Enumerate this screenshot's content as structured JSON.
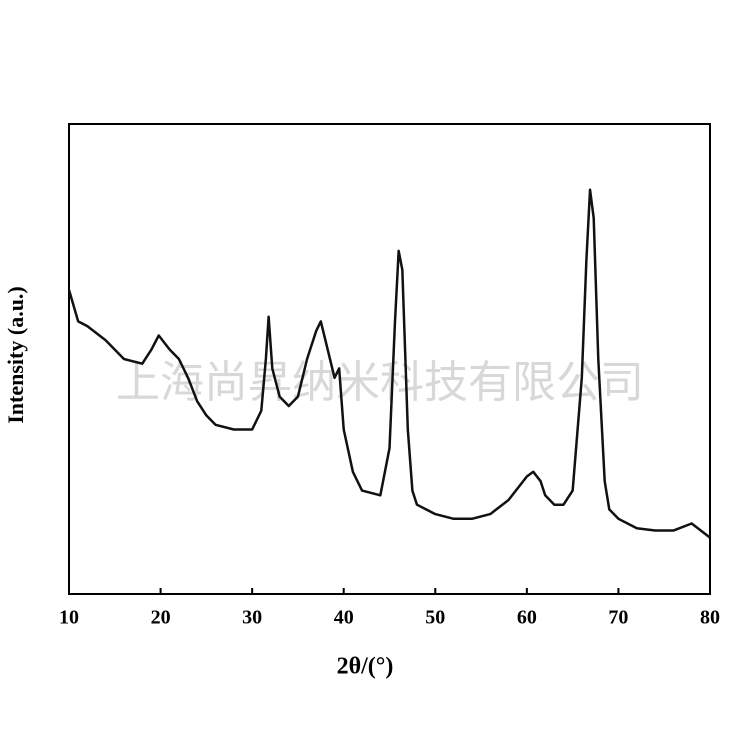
{
  "chart_data": {
    "type": "line",
    "xlabel": "2θ/(°)",
    "ylabel": "Intensity (a.u.)",
    "watermark": "上海尚昇纳米科技有限公司",
    "x": [
      10,
      11,
      12,
      14,
      16,
      18,
      19,
      19.8,
      21,
      22,
      23,
      24,
      25,
      26,
      28,
      30,
      31,
      31.5,
      31.8,
      32.2,
      33,
      34,
      35,
      36,
      37,
      37.5,
      38,
      39,
      39.5,
      40,
      41,
      42,
      43,
      44,
      45,
      45.6,
      46,
      46.4,
      47,
      47.5,
      48,
      50,
      52,
      54,
      56,
      58,
      60,
      60.7,
      61.5,
      62,
      63,
      64,
      65,
      66,
      66.5,
      66.9,
      67.3,
      67.8,
      68.5,
      69,
      70,
      72,
      74,
      76,
      78,
      80
    ],
    "series": [
      {
        "color": "#111111",
        "values": [
          64.7,
          58,
          57,
          54,
          50,
          49,
          52,
          55,
          52,
          50,
          46,
          41,
          38,
          36,
          35,
          35,
          39,
          50,
          59,
          48,
          42,
          40,
          42,
          50,
          56,
          58,
          54,
          46,
          48,
          35,
          26,
          22,
          21.5,
          21,
          31,
          58,
          73,
          69,
          35,
          22,
          19,
          17,
          16,
          16,
          17,
          20,
          25,
          26,
          24,
          21,
          19,
          19,
          22,
          46,
          71,
          86,
          80,
          50,
          24,
          18,
          16,
          14,
          13.5,
          13.5,
          15,
          12
        ]
      }
    ],
    "xlim": [
      10,
      80
    ],
    "ylim": [
      0,
      100
    ],
    "xticks": [
      10,
      20,
      30,
      40,
      50,
      60,
      70,
      80
    ]
  }
}
